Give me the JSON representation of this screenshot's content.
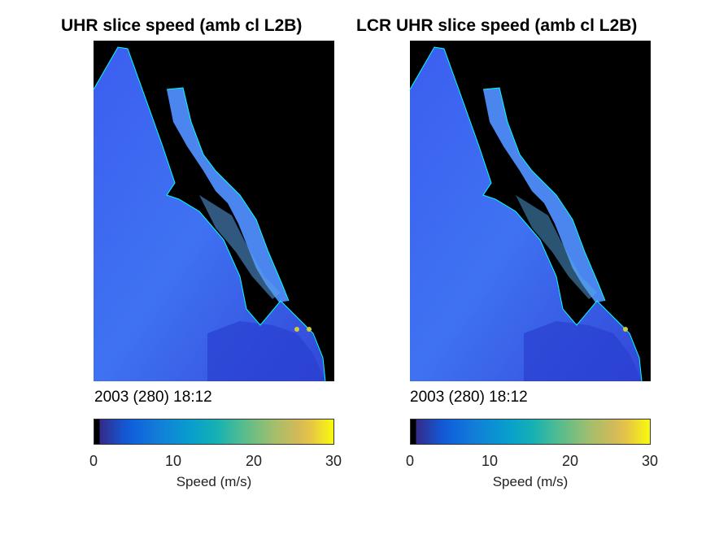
{
  "panels": [
    {
      "title": "UHR slice speed (amb cl L2B)",
      "date": "2003 (280) 18:12",
      "colorbar": {
        "label": "Speed (m/s)",
        "ticks": [
          "0",
          "10",
          "20",
          "30"
        ]
      }
    },
    {
      "title": "LCR UHR slice speed (amb cl L2B)",
      "date": "2003 (280) 18:12",
      "colorbar": {
        "label": "Speed (m/s)",
        "ticks": [
          "0",
          "10",
          "20",
          "30"
        ]
      }
    }
  ],
  "chart_data": [
    {
      "type": "heatmap",
      "title": "UHR slice speed (amb cl L2B)",
      "colorbar_label": "Speed (m/s)",
      "color_range": [
        0,
        30
      ],
      "colormap": "parula",
      "land_color": "#000000",
      "coast_color": "#00ffff"
    },
    {
      "type": "heatmap",
      "title": "LCR UHR slice speed (amb cl L2B)",
      "colorbar_label": "Speed (m/s)",
      "color_range": [
        0,
        30
      ],
      "colormap": "parula",
      "land_color": "#000000",
      "coast_color": "#00ffff"
    }
  ]
}
